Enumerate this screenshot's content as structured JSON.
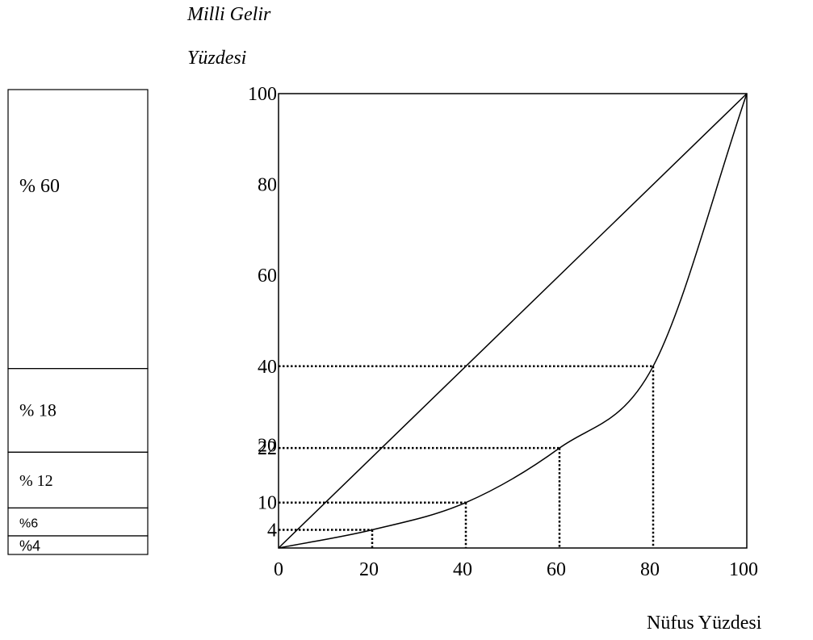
{
  "chart_data": [
    {
      "type": "stacked-bar",
      "segments": [
        {
          "label": "% 60",
          "value": 60
        },
        {
          "label": "% 18",
          "value": 18
        },
        {
          "label": "% 12",
          "value": 12
        },
        {
          "label": "%6",
          "value": 6
        },
        {
          "label": "%4",
          "value": 4
        }
      ]
    },
    {
      "type": "line",
      "ylabel_line1": "Milli Gelir",
      "ylabel_line2": "Yüzdesi",
      "xlabel": "Nüfus Yüzdesi",
      "xlim": [
        0,
        100
      ],
      "ylim": [
        0,
        100
      ],
      "x_ticks": [
        "20",
        "40",
        "60",
        "80",
        "100"
      ],
      "y_ticks": [
        "100",
        "80",
        "60",
        "40",
        "22",
        "20",
        "10",
        "4"
      ],
      "origin_label": "0",
      "series": [
        {
          "kind": "equality",
          "points": [
            [
              0,
              0
            ],
            [
              100,
              100
            ]
          ]
        },
        {
          "kind": "lorenz",
          "points": [
            [
              0,
              0
            ],
            [
              20,
              4
            ],
            [
              40,
              10
            ],
            [
              60,
              22
            ],
            [
              80,
              40
            ],
            [
              100,
              100
            ]
          ]
        }
      ],
      "guides": [
        [
          20,
          4
        ],
        [
          40,
          10
        ],
        [
          60,
          22
        ],
        [
          80,
          40
        ]
      ]
    }
  ]
}
